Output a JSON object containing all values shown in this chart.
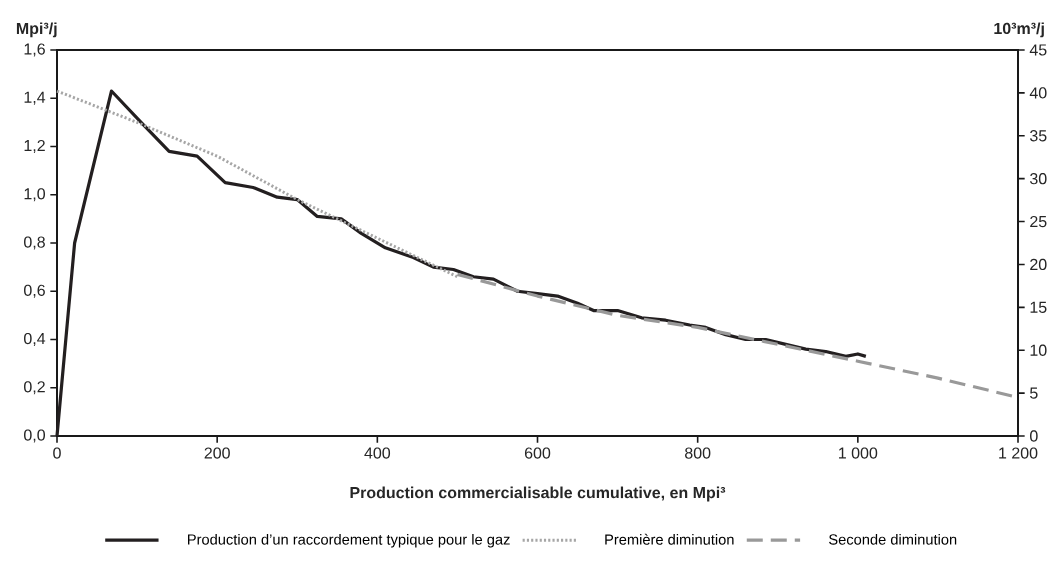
{
  "chart_data": {
    "type": "line",
    "xlabel": "Production commercialisable cumulative, en Mpi³",
    "ylabel": "Mpi³/j",
    "y2label": "10³m³/j",
    "xlim": [
      0,
      1200
    ],
    "xticks": [
      0,
      200,
      400,
      600,
      800,
      {
        "value": 1000,
        "label": "1 000"
      },
      {
        "value": 1200,
        "label": "1 200"
      }
    ],
    "ylim": [
      0,
      1.6
    ],
    "yticks": [
      {
        "value": 0,
        "label": "0,0"
      },
      {
        "value": 0.2,
        "label": "0,2"
      },
      {
        "value": 0.4,
        "label": "0,4"
      },
      {
        "value": 0.6,
        "label": "0,6"
      },
      {
        "value": 0.8,
        "label": "0,8"
      },
      {
        "value": 1.0,
        "label": "1,0"
      },
      {
        "value": 1.2,
        "label": "1,2"
      },
      {
        "value": 1.4,
        "label": "1,4"
      },
      {
        "value": 1.6,
        "label": "1,6"
      }
    ],
    "y2lim": [
      0,
      45
    ],
    "y2ticks": [
      0,
      5,
      10,
      15,
      20,
      25,
      30,
      35,
      40,
      45
    ],
    "legend": "bottom",
    "series": [
      {
        "name": "Production d’un raccordement typique pour le gaz",
        "color": "#231f20",
        "line_style": "solid",
        "x": [
          0,
          22,
          68,
          105,
          140,
          175,
          210,
          245,
          275,
          300,
          325,
          355,
          380,
          410,
          445,
          470,
          495,
          520,
          545,
          575,
          600,
          625,
          650,
          670,
          700,
          730,
          760,
          790,
          810,
          835,
          860,
          885,
          910,
          935,
          960,
          985,
          1000,
          1010
        ],
        "values": [
          0,
          0.8,
          1.43,
          1.3,
          1.18,
          1.16,
          1.05,
          1.03,
          0.99,
          0.98,
          0.91,
          0.9,
          0.84,
          0.78,
          0.74,
          0.7,
          0.69,
          0.66,
          0.65,
          0.6,
          0.59,
          0.58,
          0.55,
          0.52,
          0.52,
          0.49,
          0.48,
          0.46,
          0.45,
          0.42,
          0.4,
          0.4,
          0.38,
          0.36,
          0.35,
          0.33,
          0.34,
          0.33
        ]
      },
      {
        "name": "Première diminution",
        "color": "#a6a6a6",
        "line_style": "dotted",
        "x": [
          0,
          100,
          200,
          300,
          400,
          500
        ],
        "values": [
          1.43,
          1.3,
          1.16,
          0.98,
          0.82,
          0.66
        ]
      },
      {
        "name": "Seconde diminution",
        "color": "#999999",
        "line_style": "dashed",
        "x": [
          500,
          600,
          700,
          800,
          900,
          1000,
          1100,
          1200
        ],
        "values": [
          0.67,
          0.58,
          0.5,
          0.45,
          0.38,
          0.31,
          0.24,
          0.16
        ]
      }
    ]
  }
}
